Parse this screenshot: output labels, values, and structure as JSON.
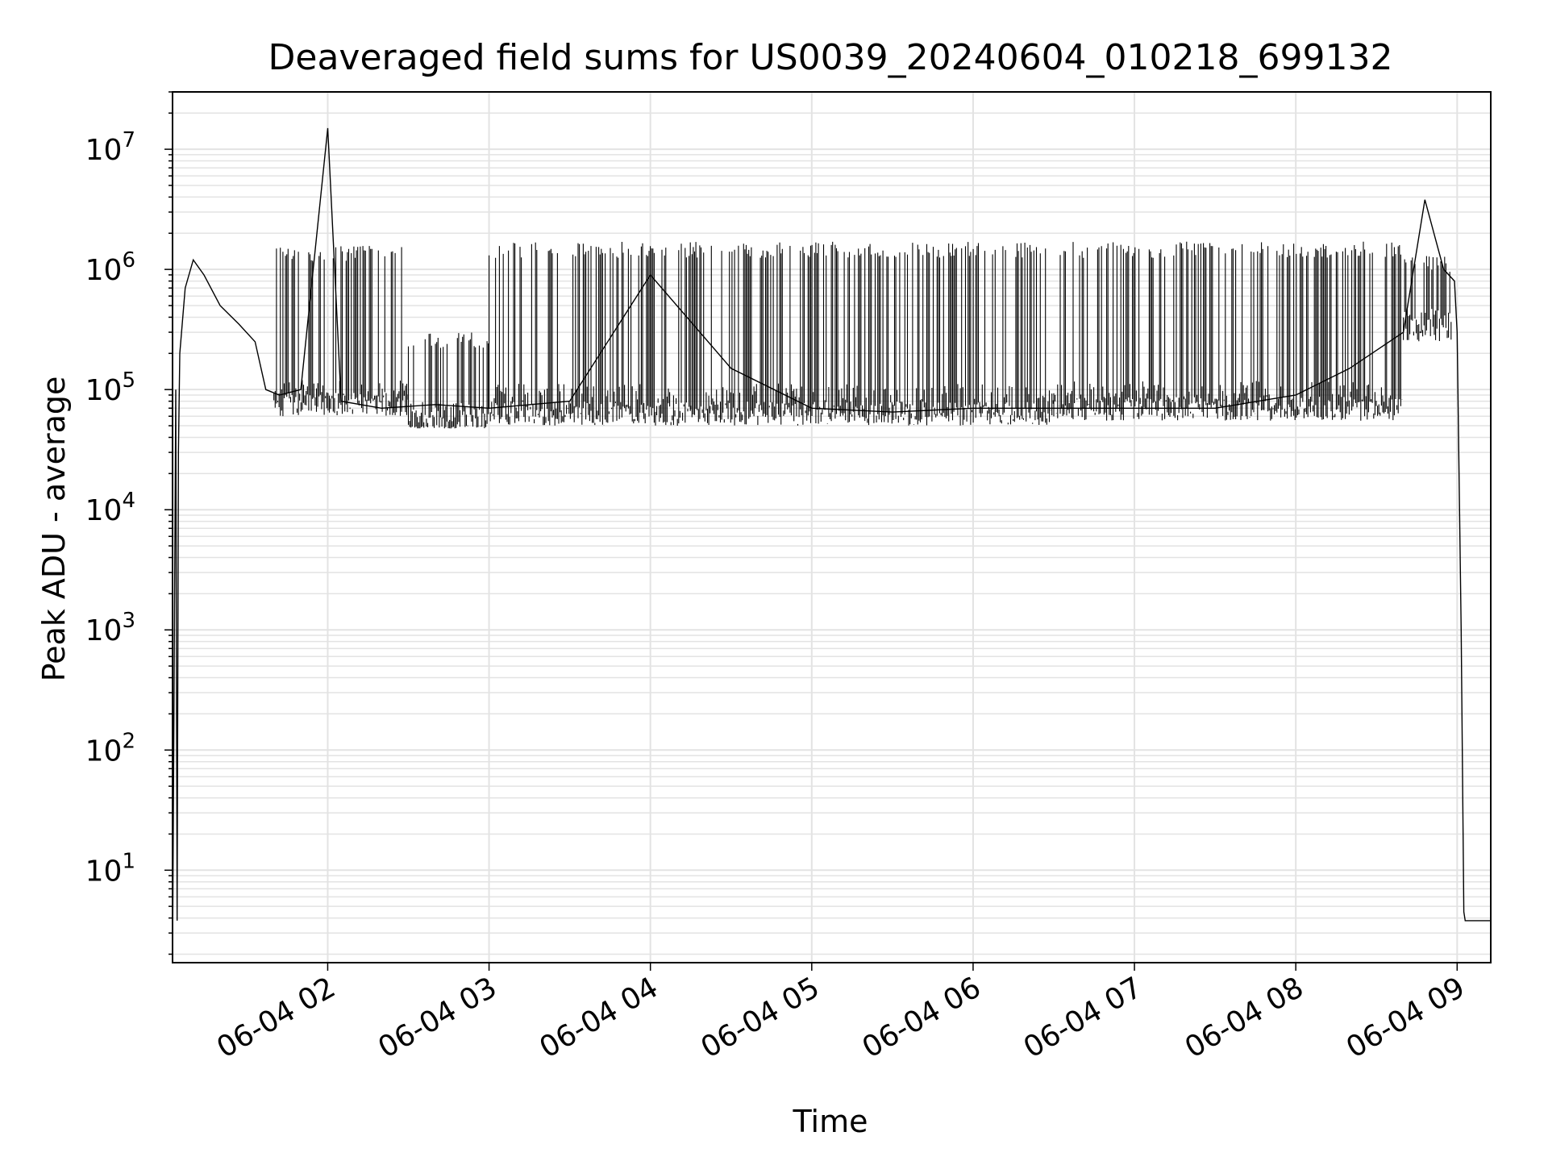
{
  "chart_data": {
    "type": "line",
    "title": "Deaveraged field sums for US0039_20240604_010218_699132",
    "xlabel": "Time",
    "ylabel": "Peak ADU - average",
    "y_scale": "log",
    "ylim": [
      1.7,
      30000000
    ],
    "xlim": [
      "2024-06-04 01:02:18",
      "2024-06-04 09:12:30"
    ],
    "grid": true,
    "line_color": "#000000",
    "x_ticks": [
      {
        "value": "2024-06-04 02:00",
        "label": "06-04 02"
      },
      {
        "value": "2024-06-04 03:00",
        "label": "06-04 03"
      },
      {
        "value": "2024-06-04 04:00",
        "label": "06-04 04"
      },
      {
        "value": "2024-06-04 05:00",
        "label": "06-04 05"
      },
      {
        "value": "2024-06-04 06:00",
        "label": "06-04 06"
      },
      {
        "value": "2024-06-04 07:00",
        "label": "06-04 07"
      },
      {
        "value": "2024-06-04 08:00",
        "label": "06-04 08"
      },
      {
        "value": "2024-06-04 09:00",
        "label": "06-04 09"
      }
    ],
    "y_ticks": [
      {
        "value": 10,
        "base": "10",
        "exp": "1"
      },
      {
        "value": 100,
        "base": "10",
        "exp": "2"
      },
      {
        "value": 1000,
        "base": "10",
        "exp": "3"
      },
      {
        "value": 10000,
        "base": "10",
        "exp": "4"
      },
      {
        "value": 100000,
        "base": "10",
        "exp": "5"
      },
      {
        "value": 1000000,
        "base": "10",
        "exp": "6"
      },
      {
        "value": 10000000,
        "base": "10",
        "exp": "7"
      }
    ],
    "series": [
      {
        "points": [
          {
            "x": "2024-06-04 01:02:18",
            "y": 1.7
          },
          {
            "x": "2024-06-04 01:03:30",
            "y": 100000
          },
          {
            "x": "2024-06-04 01:04:00",
            "y": 3.8
          },
          {
            "x": "2024-06-04 01:04:30",
            "y": 30000
          },
          {
            "x": "2024-06-04 01:05:00",
            "y": 200000
          },
          {
            "x": "2024-06-04 01:07:00",
            "y": 700000
          },
          {
            "x": "2024-06-04 01:10:00",
            "y": 1200000
          },
          {
            "x": "2024-06-04 01:14:00",
            "y": 900000
          },
          {
            "x": "2024-06-04 01:20:00",
            "y": 500000
          },
          {
            "x": "2024-06-04 01:27:00",
            "y": 350000
          },
          {
            "x": "2024-06-04 01:33:00",
            "y": 250000
          },
          {
            "x": "2024-06-04 01:37:00",
            "y": 100000
          },
          {
            "x": "2024-06-04 01:42:00",
            "y": 90000
          },
          {
            "x": "2024-06-04 01:50:00",
            "y": 100000
          },
          {
            "x": "2024-06-04 02:00:00",
            "y": 15000000
          },
          {
            "x": "2024-06-04 02:05:00",
            "y": 80000
          },
          {
            "x": "2024-06-04 02:20:00",
            "y": 70000
          },
          {
            "x": "2024-06-04 02:40:00",
            "y": 75000
          },
          {
            "x": "2024-06-04 03:00:00",
            "y": 70000
          },
          {
            "x": "2024-06-04 03:30:00",
            "y": 80000
          },
          {
            "x": "2024-06-04 04:00:00",
            "y": 900000
          },
          {
            "x": "2024-06-04 04:30:00",
            "y": 150000
          },
          {
            "x": "2024-06-04 05:00:00",
            "y": 70000
          },
          {
            "x": "2024-06-04 05:30:00",
            "y": 65000
          },
          {
            "x": "2024-06-04 06:00:00",
            "y": 70000
          },
          {
            "x": "2024-06-04 06:30:00",
            "y": 70000
          },
          {
            "x": "2024-06-04 07:00:00",
            "y": 70000
          },
          {
            "x": "2024-06-04 07:30:00",
            "y": 70000
          },
          {
            "x": "2024-06-04 08:00:00",
            "y": 90000
          },
          {
            "x": "2024-06-04 08:20:00",
            "y": 150000
          },
          {
            "x": "2024-06-04 08:40:00",
            "y": 300000
          },
          {
            "x": "2024-06-04 08:48:00",
            "y": 3800000
          },
          {
            "x": "2024-06-04 08:55:00",
            "y": 1000000
          },
          {
            "x": "2024-06-04 08:59:00",
            "y": 800000
          },
          {
            "x": "2024-06-04 09:00:00",
            "y": 300000
          },
          {
            "x": "2024-06-04 09:01:30",
            "y": 1000
          },
          {
            "x": "2024-06-04 09:02:30",
            "y": 4.5
          },
          {
            "x": "2024-06-04 09:03:00",
            "y": 3.8
          },
          {
            "x": "2024-06-04 09:12:30",
            "y": 3.8
          }
        ],
        "fluctuation_bands": [
          {
            "from": "2024-06-04 01:40:00",
            "to": "2024-06-04 02:30:00",
            "low": 60000,
            "high": 1600000
          },
          {
            "from": "2024-06-04 02:30:00",
            "to": "2024-06-04 03:00:00",
            "low": 50000,
            "high": 300000
          },
          {
            "from": "2024-06-04 03:00:00",
            "to": "2024-06-04 04:15:00",
            "low": 50000,
            "high": 1700000
          },
          {
            "from": "2024-06-04 04:15:00",
            "to": "2024-06-04 06:30:00",
            "low": 50000,
            "high": 1700000
          },
          {
            "from": "2024-06-04 06:30:00",
            "to": "2024-06-04 08:40:00",
            "low": 55000,
            "high": 1700000
          },
          {
            "from": "2024-06-04 08:40:00",
            "to": "2024-06-04 08:58:00",
            "low": 300000,
            "high": 1300000
          }
        ]
      }
    ]
  }
}
